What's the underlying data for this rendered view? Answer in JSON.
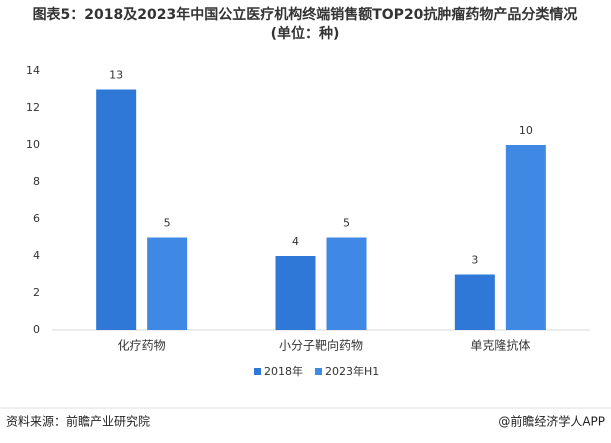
{
  "chart_data": {
    "type": "bar",
    "title": "图表5：2018及2023年中国公立医疗机构终端销售额TOP20抗肿瘤药物产品分类情况 (单位：种)",
    "categories": [
      "化疗药物",
      "小分子靶向药物",
      "单克隆抗体"
    ],
    "series": [
      {
        "name": "2018年",
        "color": "#2f78d8",
        "values": [
          13,
          4,
          3
        ]
      },
      {
        "name": "2023年H1",
        "color": "#3f88e4",
        "values": [
          5,
          5,
          10
        ]
      }
    ],
    "ylim": [
      0,
      14
    ],
    "yticks": [
      0,
      2,
      4,
      6,
      8,
      10,
      12,
      14
    ],
    "grid": false,
    "source": "资料来源：前瞻产业研究院",
    "credit": "@前瞻经济学人APP"
  }
}
